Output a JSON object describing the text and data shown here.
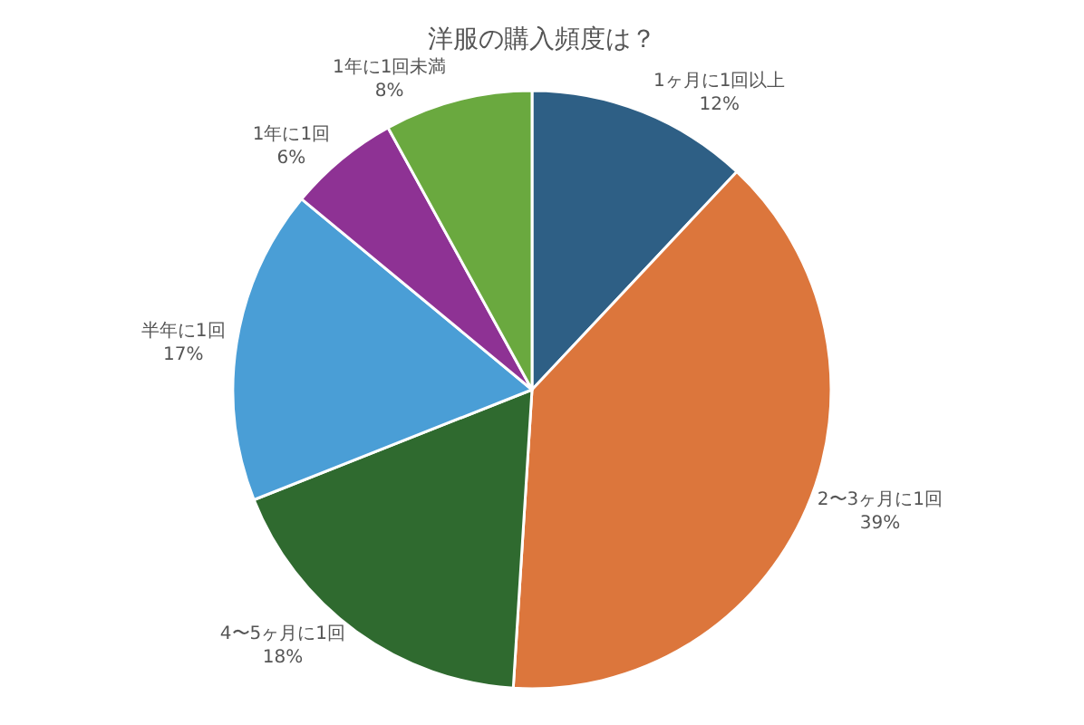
{
  "chart_data": {
    "type": "pie",
    "title": "洋服の購入頻度は？",
    "categories": [
      "1ヶ月に1回以上",
      "2〜3ヶ月に1回",
      "4〜5ヶ月に1回",
      "半年に1回",
      "1年に1回",
      "1年に1回未満"
    ],
    "values": [
      12,
      39,
      18,
      17,
      6,
      8
    ],
    "value_labels": [
      "12%",
      "39%",
      "18%",
      "17%",
      "6%",
      "8%"
    ],
    "colors": [
      "#2e5f85",
      "#dc763c",
      "#2f6a2f",
      "#4a9ed6",
      "#8e3294",
      "#6aa93f"
    ],
    "legend": false
  }
}
